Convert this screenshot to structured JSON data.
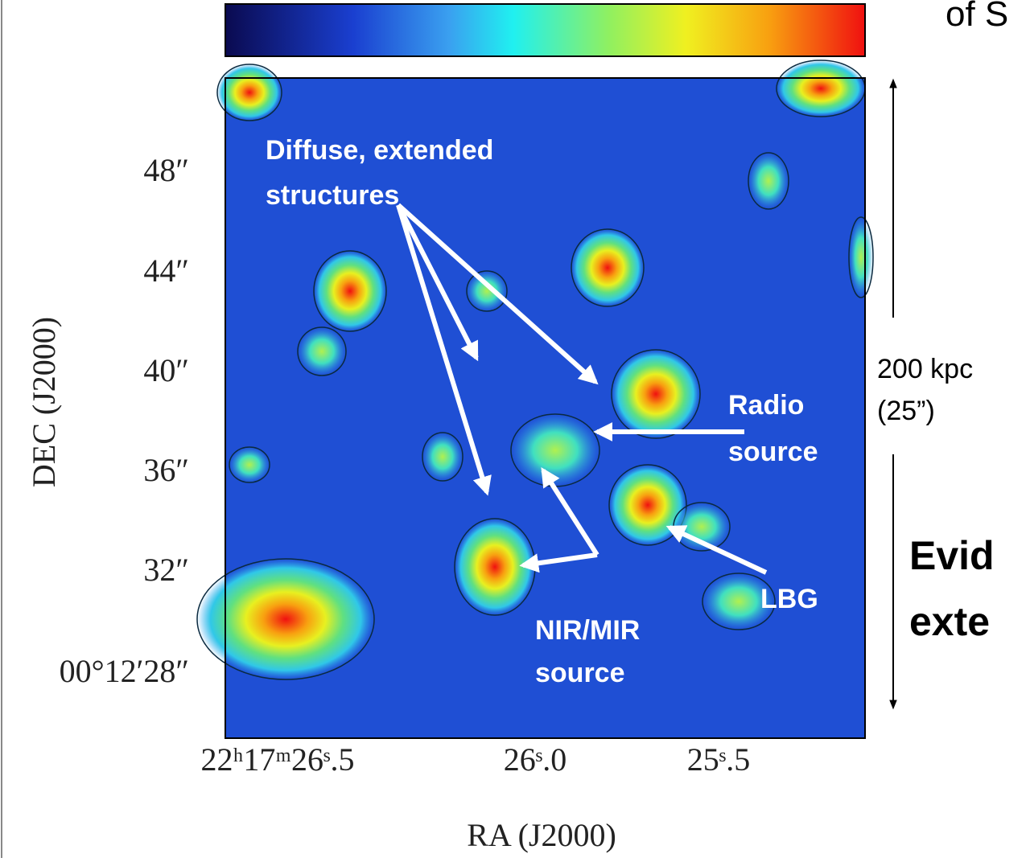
{
  "header_fragment": "of S",
  "axes": {
    "y_label": "DEC (J2000)",
    "x_label": "RA (J2000)",
    "y_ticks": [
      "48″",
      "44″",
      "40″",
      "36″",
      "32″",
      "00°12′28″"
    ],
    "x_ticks": [
      "22ʰ17ᵐ26ˢ.5",
      "26ˢ.0",
      "25ˢ.5"
    ]
  },
  "annotations": {
    "diffuse": [
      "Diffuse, extended",
      "structures"
    ],
    "radio": [
      "Radio",
      "source"
    ],
    "nir": [
      "NIR/MIR",
      "source"
    ],
    "lbg": [
      "LBG"
    ]
  },
  "scale_bar": [
    "200 kpc",
    "(25”)"
  ],
  "side_text": [
    "Evid",
    "exte"
  ]
}
